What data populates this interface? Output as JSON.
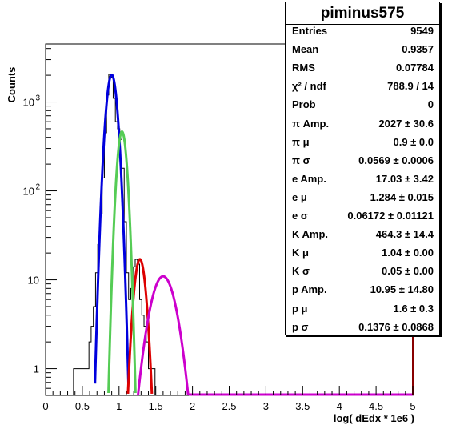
{
  "chart_data": {
    "type": "line",
    "title": "",
    "xlabel": "log( dEdx * 1e6 )",
    "ylabel": "Counts",
    "xlim": [
      0,
      5
    ],
    "ylim": [
      0.5,
      4500
    ],
    "yscale": "log",
    "grid": false,
    "x_ticks": [
      "0",
      "0.5",
      "1",
      "1.5",
      "2",
      "2.5",
      "3",
      "3.5",
      "4",
      "4.5",
      "5"
    ],
    "y_ticks": [
      "1",
      "10",
      "10",
      "10"
    ],
    "y_tick_exponents": [
      "",
      "",
      "2",
      "3"
    ],
    "y_tick_values": [
      1,
      10,
      100,
      1000
    ],
    "histogram": {
      "name": "piminus575",
      "color": "#000000",
      "x": [
        0.395,
        0.425,
        0.455,
        0.485,
        0.515,
        0.545,
        0.575,
        0.605,
        0.635,
        0.665,
        0.695,
        0.725,
        0.755,
        0.785,
        0.815,
        0.845,
        0.875,
        0.905,
        0.935,
        0.965,
        0.995,
        1.025,
        1.055,
        1.085,
        1.115,
        1.145,
        1.175,
        1.205,
        1.235,
        1.265,
        1.295,
        1.325,
        1.355,
        1.385,
        1.415,
        1.445,
        1.475
      ],
      "counts": [
        1,
        1,
        1,
        1,
        1,
        1,
        1,
        2,
        3,
        5,
        12,
        25,
        55,
        140,
        450,
        1200,
        2050,
        1900,
        1100,
        600,
        500,
        380,
        180,
        45,
        12,
        6,
        8,
        14,
        17,
        15,
        6,
        4,
        3,
        2,
        1,
        1,
        1
      ]
    },
    "fits": [
      {
        "name": "pi",
        "color": "#0000dd",
        "amp": 2027,
        "mu": 0.9,
        "sigma": 0.0569
      },
      {
        "name": "e",
        "color": "#dd0000",
        "amp": 17.03,
        "mu": 1.284,
        "sigma": 0.06172
      },
      {
        "name": "K",
        "color": "#55cc55",
        "amp": 464.3,
        "mu": 1.04,
        "sigma": 0.05
      },
      {
        "name": "p",
        "color": "#cc00cc",
        "amp": 10.95,
        "mu": 1.6,
        "sigma": 0.1376
      }
    ]
  },
  "stats": {
    "title": "piminus575",
    "rows": [
      {
        "label": "Entries",
        "value": "9549"
      },
      {
        "label": "Mean",
        "value": "0.9357"
      },
      {
        "label": "RMS",
        "value": "0.07784"
      },
      {
        "label": "χ² / ndf",
        "value": "788.9 / 14"
      },
      {
        "label": "Prob",
        "value": "0"
      },
      {
        "label": "π Amp.",
        "value": "2027 ± 30.6"
      },
      {
        "label": "π μ",
        "value": "0.9 ± 0.0"
      },
      {
        "label": "π σ",
        "value": "0.0569 ± 0.0006"
      },
      {
        "label": "e Amp.",
        "value": "17.03 ± 3.42"
      },
      {
        "label": "e μ",
        "value": "1.284 ± 0.015"
      },
      {
        "label": "e σ",
        "value": "0.06172 ± 0.01121"
      },
      {
        "label": "K Amp.",
        "value": "464.3 ± 14.4"
      },
      {
        "label": "K μ",
        "value": "1.04 ± 0.00"
      },
      {
        "label": "K σ",
        "value": "0.05 ± 0.00"
      },
      {
        "label": "p Amp.",
        "value": "10.95 ± 14.80"
      },
      {
        "label": "p μ",
        "value": "1.6 ± 0.3"
      },
      {
        "label": "p σ",
        "value": "0.1376 ± 0.0868"
      }
    ]
  }
}
